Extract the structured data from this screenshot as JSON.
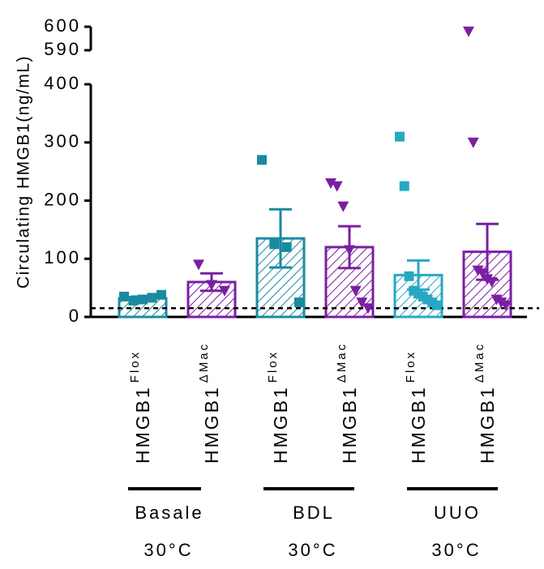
{
  "chart_data": {
    "type": "bar",
    "ylabel": "Circulating HMGB1(ng/mL)",
    "y_axis": {
      "segments": [
        {
          "range": [
            0,
            400
          ],
          "ticks": [
            0,
            100,
            200,
            300,
            400
          ]
        },
        {
          "range": [
            590,
            600
          ],
          "ticks": [
            590,
            600
          ]
        }
      ]
    },
    "reference_line": {
      "value": 15,
      "style": "dashed"
    },
    "group_labels": [
      {
        "name": "Basale",
        "temp": "30°C"
      },
      {
        "name": "BDL",
        "temp": "30°C"
      },
      {
        "name": "UUO",
        "temp": "30°C"
      }
    ],
    "bars": [
      {
        "label": "HMGB1",
        "sup": "Flox",
        "group": 0,
        "mean": 32,
        "sem": 3,
        "color": "#1a8aa0",
        "marker": "square",
        "points": [
          35,
          28,
          30,
          33,
          38
        ]
      },
      {
        "label": "HMGB1",
        "sup": "ΔMac",
        "group": 0,
        "mean": 60,
        "sem": 15,
        "color": "#7b1fa2",
        "marker": "triangle-down",
        "points": [
          90,
          55,
          45
        ]
      },
      {
        "label": "HMGB1",
        "sup": "Flox",
        "group": 1,
        "mean": 135,
        "sem": 50,
        "color": "#1a8aa0",
        "marker": "square",
        "points": [
          270,
          125,
          120,
          25
        ]
      },
      {
        "label": "HMGB1",
        "sup": "ΔMac",
        "group": 1,
        "mean": 120,
        "sem": 36,
        "color": "#7b1fa2",
        "marker": "triangle-down",
        "points": [
          230,
          225,
          190,
          115,
          45,
          25,
          15
        ]
      },
      {
        "label": "HMGB1",
        "sup": "Flox",
        "group": 2,
        "mean": 72,
        "sem": 25,
        "color": "#26a8c2",
        "marker": "square",
        "points": [
          310,
          225,
          70,
          45,
          40,
          35,
          30,
          25,
          20
        ]
      },
      {
        "label": "HMGB1",
        "sup": "ΔMac",
        "group": 2,
        "mean": 112,
        "sem": 48,
        "color": "#7b1fa2",
        "marker": "triangle-down",
        "points": [
          598,
          300,
          80,
          75,
          65,
          60,
          30,
          25,
          20
        ]
      }
    ]
  }
}
